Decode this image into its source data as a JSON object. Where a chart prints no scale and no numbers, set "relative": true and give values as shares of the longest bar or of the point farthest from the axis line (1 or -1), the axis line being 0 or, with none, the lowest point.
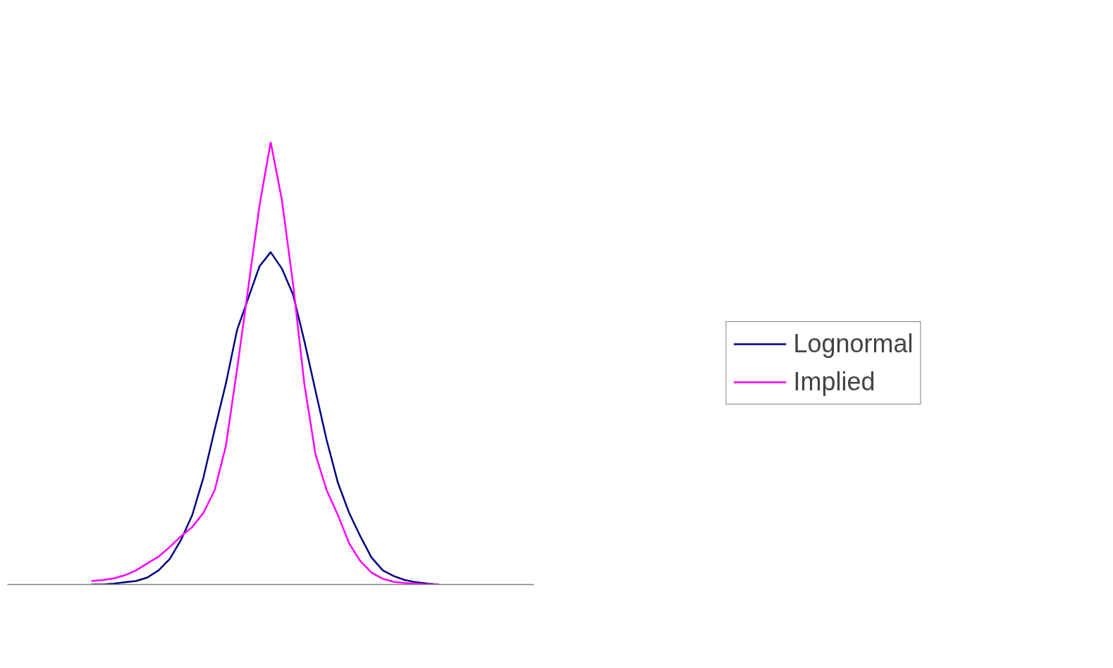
{
  "chart_data": {
    "type": "line",
    "relative": true,
    "legend": "right",
    "grid": false,
    "categories": [
      null,
      null,
      null,
      null,
      null,
      null,
      null,
      null,
      null,
      null,
      null,
      null,
      null,
      null,
      null,
      null,
      null,
      null,
      null,
      null,
      null,
      null,
      null,
      null,
      null,
      null,
      null,
      null,
      null,
      null,
      null,
      null,
      null,
      null,
      null,
      null,
      null,
      null,
      null,
      null,
      null,
      null,
      null,
      null,
      null,
      null,
      null
    ],
    "series": [
      {
        "name": "Lognormal",
        "color": "#000080",
        "values": [
          null,
          null,
          null,
          null,
          null,
          null,
          null,
          0,
          0,
          0.002,
          0.005,
          0.008,
          0.016,
          0.032,
          0.058,
          0.101,
          0.157,
          0.242,
          0.35,
          0.454,
          0.575,
          0.647,
          0.719,
          0.751,
          0.714,
          0.655,
          0.551,
          0.438,
          0.326,
          0.23,
          0.162,
          0.109,
          0.061,
          0.032,
          0.019,
          0.01,
          0.005,
          0.002,
          0,
          null,
          null,
          null,
          null,
          null,
          null,
          null,
          null
        ]
      },
      {
        "name": "Implied",
        "color": "#ff00ff",
        "values": [
          null,
          null,
          null,
          null,
          null,
          null,
          null,
          0.008,
          0.01,
          0.014,
          0.021,
          0.032,
          0.048,
          0.063,
          0.085,
          0.109,
          0.13,
          0.162,
          0.213,
          0.313,
          0.486,
          0.671,
          0.856,
          1,
          0.869,
          0.679,
          0.454,
          0.294,
          0.213,
          0.157,
          0.093,
          0.053,
          0.027,
          0.013,
          0.006,
          0.003,
          0.002,
          0,
          0,
          null,
          null,
          null,
          null,
          null,
          null,
          null,
          null
        ]
      }
    ]
  }
}
